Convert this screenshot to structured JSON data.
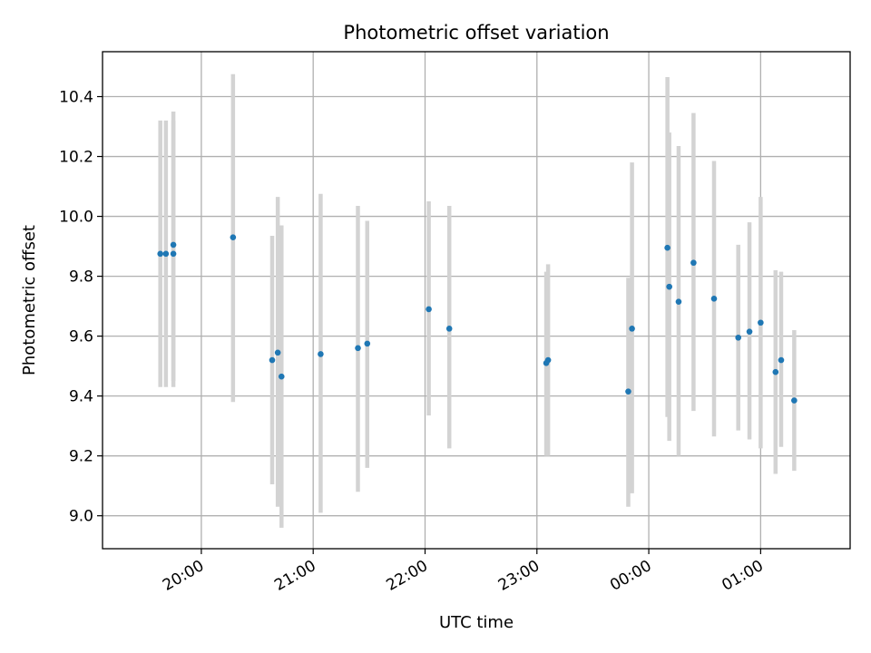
{
  "chart_data": {
    "type": "scatter",
    "title": "Photometric offset variation",
    "xlabel": "UTC time",
    "ylabel": "Photometric offset",
    "x_unit": "UTC time (HH:MM)",
    "xlim": [
      "19:07",
      "01:48"
    ],
    "ylim": [
      8.89,
      10.55
    ],
    "x_ticks": [
      "20:00",
      "21:00",
      "22:00",
      "23:00",
      "00:00",
      "01:00"
    ],
    "y_ticks": [
      "9.0",
      "9.2",
      "9.4",
      "9.6",
      "9.8",
      "10.0",
      "10.2",
      "10.4"
    ],
    "grid": true,
    "colors": {
      "point": "#1f77b4",
      "errorbar": "#d3d3d3",
      "grid": "#b0b0b0"
    },
    "points": [
      {
        "x": "19:38",
        "y": 9.875,
        "yerr_low": 9.43,
        "yerr_high": 10.32
      },
      {
        "x": "19:41",
        "y": 9.875,
        "yerr_low": 9.43,
        "yerr_high": 10.32
      },
      {
        "x": "19:45",
        "y": 9.875,
        "yerr_low": 9.43,
        "yerr_high": 10.32
      },
      {
        "x": "19:45",
        "y": 9.905,
        "yerr_low": 9.45,
        "yerr_high": 10.35
      },
      {
        "x": "20:17",
        "y": 9.93,
        "yerr_low": 9.38,
        "yerr_high": 10.475
      },
      {
        "x": "20:38",
        "y": 9.52,
        "yerr_low": 9.105,
        "yerr_high": 9.935
      },
      {
        "x": "20:41",
        "y": 9.545,
        "yerr_low": 9.03,
        "yerr_high": 10.065
      },
      {
        "x": "20:43",
        "y": 9.465,
        "yerr_low": 8.96,
        "yerr_high": 9.97
      },
      {
        "x": "21:04",
        "y": 9.54,
        "yerr_low": 9.01,
        "yerr_high": 10.075
      },
      {
        "x": "21:24",
        "y": 9.56,
        "yerr_low": 9.08,
        "yerr_high": 10.035
      },
      {
        "x": "21:29",
        "y": 9.575,
        "yerr_low": 9.16,
        "yerr_high": 9.985
      },
      {
        "x": "22:02",
        "y": 9.69,
        "yerr_low": 9.335,
        "yerr_high": 10.05
      },
      {
        "x": "22:13",
        "y": 9.625,
        "yerr_low": 9.225,
        "yerr_high": 10.035
      },
      {
        "x": "23:05",
        "y": 9.51,
        "yerr_low": 9.2,
        "yerr_high": 9.815
      },
      {
        "x": "23:06",
        "y": 9.52,
        "yerr_low": 9.2,
        "yerr_high": 9.84
      },
      {
        "x": "23:49",
        "y": 9.415,
        "yerr_low": 9.03,
        "yerr_high": 9.795
      },
      {
        "x": "23:51",
        "y": 9.625,
        "yerr_low": 9.075,
        "yerr_high": 10.18
      },
      {
        "x": "00:10",
        "y": 9.895,
        "yerr_low": 9.33,
        "yerr_high": 10.465
      },
      {
        "x": "00:11",
        "y": 9.765,
        "yerr_low": 9.25,
        "yerr_high": 10.28
      },
      {
        "x": "00:16",
        "y": 9.715,
        "yerr_low": 9.2,
        "yerr_high": 10.235
      },
      {
        "x": "00:24",
        "y": 9.845,
        "yerr_low": 9.35,
        "yerr_high": 10.345
      },
      {
        "x": "00:35",
        "y": 9.725,
        "yerr_low": 9.265,
        "yerr_high": 10.185
      },
      {
        "x": "00:48",
        "y": 9.595,
        "yerr_low": 9.285,
        "yerr_high": 9.905
      },
      {
        "x": "00:54",
        "y": 9.615,
        "yerr_low": 9.255,
        "yerr_high": 9.98
      },
      {
        "x": "01:00",
        "y": 9.645,
        "yerr_low": 9.225,
        "yerr_high": 10.065
      },
      {
        "x": "01:08",
        "y": 9.48,
        "yerr_low": 9.14,
        "yerr_high": 9.82
      },
      {
        "x": "01:11",
        "y": 9.52,
        "yerr_low": 9.23,
        "yerr_high": 9.815
      },
      {
        "x": "01:18",
        "y": 9.385,
        "yerr_low": 9.15,
        "yerr_high": 9.62
      }
    ]
  }
}
